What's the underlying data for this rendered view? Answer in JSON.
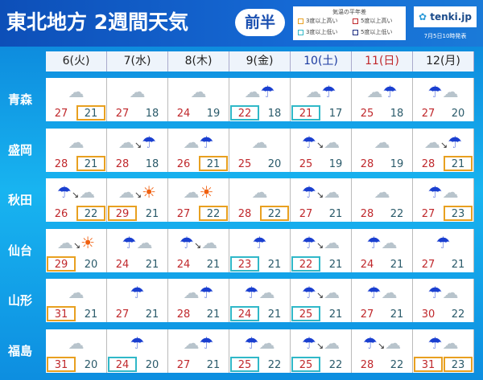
{
  "header": {
    "title": "東北地方 2週間天気",
    "half": "前半",
    "legend": {
      "title": "気温の平年差",
      "items": [
        {
          "label": "3度以上高い",
          "color": "#e8a020"
        },
        {
          "label": "5度以上高い",
          "color": "#c0282c"
        },
        {
          "label": "3度以上低い",
          "color": "#30b8c8"
        },
        {
          "label": "5度以上低い",
          "color": "#1a2a80"
        }
      ]
    },
    "logo": "tenki.jp",
    "issued": "7月5日10時発表"
  },
  "days": [
    {
      "label": "6(火)",
      "color": "#222"
    },
    {
      "label": "7(水)",
      "color": "#222"
    },
    {
      "label": "8(木)",
      "color": "#222"
    },
    {
      "label": "9(金)",
      "color": "#222"
    },
    {
      "label": "10(土)",
      "color": "#1a3aa0"
    },
    {
      "label": "11(日)",
      "color": "#c0282c"
    },
    {
      "label": "12(月)",
      "color": "#222"
    }
  ],
  "rows": [
    {
      "pref": "青森",
      "cells": [
        {
          "w": "cloudy",
          "hi": "27",
          "lo": "21",
          "lb": "o"
        },
        {
          "w": "cloudy",
          "hi": "27",
          "lo": "18"
        },
        {
          "w": "cloudy",
          "hi": "24",
          "lo": "19"
        },
        {
          "w": "cloudy-rain",
          "hi": "22",
          "lo": "18",
          "hb": "c"
        },
        {
          "w": "cloudy-rain",
          "hi": "21",
          "lo": "17",
          "hb": "c"
        },
        {
          "w": "cloudy-rain",
          "hi": "25",
          "lo": "18"
        },
        {
          "w": "rain-cloudy",
          "hi": "27",
          "lo": "20"
        }
      ]
    },
    {
      "pref": "盛岡",
      "cells": [
        {
          "w": "cloudy",
          "hi": "28",
          "lo": "21",
          "lb": "o"
        },
        {
          "w": "cloudy-later-rain",
          "hi": "28",
          "lo": "18"
        },
        {
          "w": "cloudy-rain",
          "hi": "26",
          "lo": "21",
          "lb": "o"
        },
        {
          "w": "cloudy",
          "hi": "25",
          "lo": "20"
        },
        {
          "w": "rain-later-cloudy",
          "hi": "25",
          "lo": "19"
        },
        {
          "w": "cloudy",
          "hi": "28",
          "lo": "19"
        },
        {
          "w": "cloudy-later-rain",
          "hi": "28",
          "lo": "21",
          "lb": "o"
        }
      ]
    },
    {
      "pref": "秋田",
      "cells": [
        {
          "w": "rain-later-cloudy",
          "hi": "26",
          "lo": "22",
          "lb": "o"
        },
        {
          "w": "cloudy-later-sunny",
          "hi": "29",
          "lo": "21",
          "hb": "o"
        },
        {
          "w": "cloudy-sunny",
          "hi": "27",
          "lo": "22",
          "lb": "o"
        },
        {
          "w": "cloudy",
          "hi": "28",
          "lo": "22",
          "lb": "o"
        },
        {
          "w": "rain-later-cloudy",
          "hi": "27",
          "lo": "21"
        },
        {
          "w": "cloudy",
          "hi": "28",
          "lo": "22"
        },
        {
          "w": "rain-cloudy",
          "hi": "27",
          "lo": "23",
          "lb": "o"
        }
      ]
    },
    {
      "pref": "仙台",
      "cells": [
        {
          "w": "cloudy-later-sunny",
          "hi": "29",
          "lo": "20",
          "hb": "o"
        },
        {
          "w": "rain-cloudy",
          "hi": "24",
          "lo": "21"
        },
        {
          "w": "rain-later-cloudy",
          "hi": "24",
          "lo": "21"
        },
        {
          "w": "rain",
          "hi": "23",
          "lo": "21",
          "hb": "c"
        },
        {
          "w": "rain-later-cloudy",
          "hi": "22",
          "lo": "21",
          "hb": "c"
        },
        {
          "w": "rain-cloudy",
          "hi": "24",
          "lo": "21"
        },
        {
          "w": "rain",
          "hi": "27",
          "lo": "21"
        }
      ]
    },
    {
      "pref": "山形",
      "cells": [
        {
          "w": "cloudy",
          "hi": "31",
          "lo": "21",
          "hb": "o"
        },
        {
          "w": "rain",
          "hi": "27",
          "lo": "21"
        },
        {
          "w": "cloudy-rain",
          "hi": "28",
          "lo": "21"
        },
        {
          "w": "rain-cloudy",
          "hi": "24",
          "lo": "21",
          "hb": "c"
        },
        {
          "w": "rain-later-cloudy",
          "hi": "25",
          "lo": "21",
          "hb": "c"
        },
        {
          "w": "rain-cloudy",
          "hi": "27",
          "lo": "21"
        },
        {
          "w": "rain-cloudy",
          "hi": "30",
          "lo": "22"
        }
      ]
    },
    {
      "pref": "福島",
      "cells": [
        {
          "w": "cloudy",
          "hi": "31",
          "lo": "20",
          "hb": "o"
        },
        {
          "w": "rain",
          "hi": "24",
          "lo": "20",
          "hb": "c"
        },
        {
          "w": "cloudy-rain",
          "hi": "27",
          "lo": "21"
        },
        {
          "w": "rain-cloudy",
          "hi": "25",
          "lo": "22",
          "hb": "c"
        },
        {
          "w": "rain-later-cloudy",
          "hi": "25",
          "lo": "22",
          "hb": "c"
        },
        {
          "w": "rain-later-cloudy",
          "hi": "28",
          "lo": "22"
        },
        {
          "w": "rain-cloudy",
          "hi": "31",
          "lo": "23",
          "hb": "o",
          "lb": "o"
        }
      ]
    }
  ]
}
